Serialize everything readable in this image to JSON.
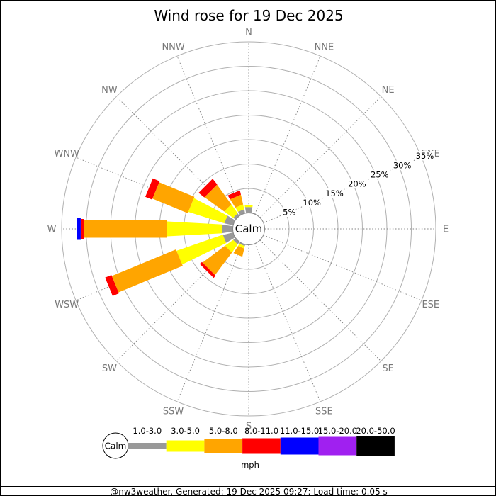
{
  "title": "Wind rose for 19 Dec 2025",
  "calm": {
    "label": "Calm"
  },
  "legend": {
    "calm_label": "Calm",
    "unit_label": "mph"
  },
  "footer": {
    "text": "@nw3weather. Generated: 19 Dec 2025 09:27; Load time: 0.05 s"
  },
  "chart_data": {
    "type": "windrose",
    "title": "Wind rose for 19 Dec 2025",
    "units": "mph",
    "calm_label": "Calm",
    "ring_percent_values": [
      5,
      10,
      15,
      20,
      25,
      30,
      35
    ],
    "ring_percent_labels": [
      "5%",
      "10%",
      "15%",
      "20%",
      "25%",
      "30%",
      "35%"
    ],
    "compass_labels": [
      "N",
      "NNE",
      "NE",
      "ENE",
      "E",
      "ESE",
      "SE",
      "SSE",
      "S",
      "SSW",
      "SW",
      "WSW",
      "W",
      "WNW",
      "NW",
      "NNW"
    ],
    "colors": {
      "grid_ring": "#b0b0b0",
      "spoke": "#808080",
      "compass_text": "#787878",
      "calm_circle_stroke": "#888888",
      "background": "#ffffff",
      "border": "#000000"
    },
    "speed_bins": [
      {
        "label": "1.0-3.0",
        "color": "#999999"
      },
      {
        "label": "3.0-5.0",
        "color": "#ffff00"
      },
      {
        "label": "5.0-8.0",
        "color": "#ffa500"
      },
      {
        "label": "8.0-11.0",
        "color": "#ff0000"
      },
      {
        "label": "11.0-15.0",
        "color": "#0000ff"
      },
      {
        "label": "15.0-20.0",
        "color": "#a020f0"
      },
      {
        "label": "20.0-50.0",
        "color": "#000000"
      }
    ],
    "petals": [
      {
        "direction": "N",
        "angle_deg": 0,
        "segments": [
          {
            "bin": "1.0-3.0",
            "pct": 1.2
          },
          {
            "bin": "3.0-5.0",
            "pct": 0.4
          }
        ]
      },
      {
        "direction": "NNW",
        "angle_deg": 337.5,
        "segments": [
          {
            "bin": "1.0-3.0",
            "pct": 0.8
          },
          {
            "bin": "3.0-5.0",
            "pct": 1.0
          },
          {
            "bin": "5.0-8.0",
            "pct": 2.0
          },
          {
            "bin": "8.0-11.0",
            "pct": 0.9
          }
        ]
      },
      {
        "direction": "NW",
        "angle_deg": 315,
        "segments": [
          {
            "bin": "1.0-3.0",
            "pct": 0.6
          },
          {
            "bin": "3.0-5.0",
            "pct": 2.2
          },
          {
            "bin": "5.0-8.0",
            "pct": 4.9
          },
          {
            "bin": "8.0-11.0",
            "pct": 1.5
          }
        ]
      },
      {
        "direction": "WNW",
        "angle_deg": 292.5,
        "segments": [
          {
            "bin": "1.0-3.0",
            "pct": 1.8
          },
          {
            "bin": "3.0-5.0",
            "pct": 7.7
          },
          {
            "bin": "5.0-8.0",
            "pct": 7.8
          },
          {
            "bin": "8.0-11.0",
            "pct": 1.5
          }
        ]
      },
      {
        "direction": "W",
        "angle_deg": 270,
        "segments": [
          {
            "bin": "1.0-3.0",
            "pct": 2.1
          },
          {
            "bin": "3.0-5.0",
            "pct": 11.3
          },
          {
            "bin": "5.0-8.0",
            "pct": 17.1
          },
          {
            "bin": "8.0-11.0",
            "pct": 0.6
          },
          {
            "bin": "11.0-15.0",
            "pct": 0.8
          }
        ]
      },
      {
        "direction": "WSW",
        "angle_deg": 247.5,
        "segments": [
          {
            "bin": "1.0-3.0",
            "pct": 2.1
          },
          {
            "bin": "3.0-5.0",
            "pct": 10.0
          },
          {
            "bin": "5.0-8.0",
            "pct": 14.2
          },
          {
            "bin": "8.0-11.0",
            "pct": 1.4
          }
        ]
      },
      {
        "direction": "SW",
        "angle_deg": 225,
        "segments": [
          {
            "bin": "1.0-3.0",
            "pct": 0.6
          },
          {
            "bin": "3.0-5.0",
            "pct": 2.0
          },
          {
            "bin": "5.0-8.0",
            "pct": 5.7
          },
          {
            "bin": "8.0-11.0",
            "pct": 0.6
          }
        ]
      },
      {
        "direction": "SSW",
        "angle_deg": 202.5,
        "segments": [
          {
            "bin": "1.0-3.0",
            "pct": 0.3
          },
          {
            "bin": "3.0-5.0",
            "pct": 0.5
          },
          {
            "bin": "5.0-8.0",
            "pct": 1.7
          }
        ]
      }
    ]
  }
}
